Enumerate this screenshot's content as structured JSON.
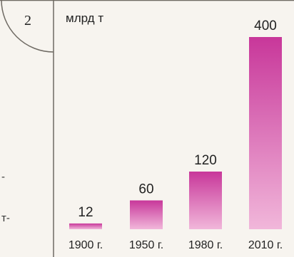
{
  "figure_number": "2",
  "side_fragments": [
    "-",
    "т-"
  ],
  "colors": {
    "frame": "#6f6a63",
    "bar_top": "#c8379a",
    "bar_bottom": "#f1b7da",
    "text": "#222222"
  },
  "chart_data": {
    "type": "bar",
    "categories": [
      "1900 г.",
      "1950 г.",
      "1980 г.",
      "2010 г."
    ],
    "values": [
      12,
      60,
      120,
      400
    ],
    "data_labels": [
      "12",
      "60",
      "120",
      "400"
    ],
    "title": "",
    "xlabel": "",
    "ylabel": "млрд т",
    "ylim": [
      0,
      400
    ],
    "grid": false,
    "legend": "none"
  }
}
